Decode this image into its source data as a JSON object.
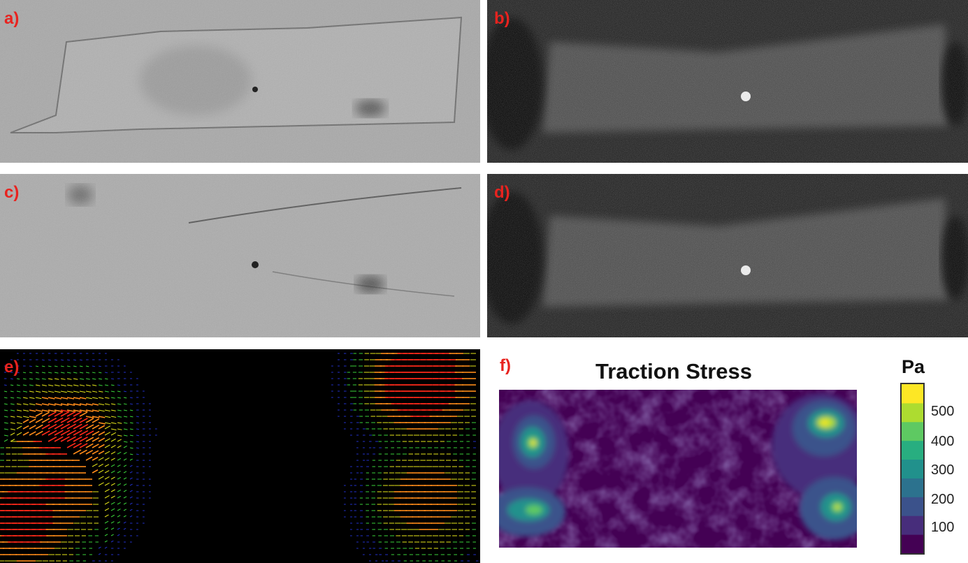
{
  "panels": [
    {
      "label": "a)",
      "kind": "brightfield"
    },
    {
      "label": "b)",
      "kind": "fluorescence"
    },
    {
      "label": "c)",
      "kind": "brightfield"
    },
    {
      "label": "d)",
      "kind": "fluorescence"
    },
    {
      "label": "e)",
      "kind": "displacement-vectors"
    },
    {
      "label": "f)",
      "kind": "traction-heatmap"
    }
  ],
  "heatmap": {
    "title": "Traction Stress",
    "colorbar_unit": "Pa",
    "colorbar_ticks": [
      "500",
      "400",
      "300",
      "200",
      "100"
    ],
    "colorscale": [
      "#440154",
      "#472d7b",
      "#3b528b",
      "#2c728e",
      "#21918c",
      "#28ae80",
      "#5ec962",
      "#addc30",
      "#fde725"
    ]
  },
  "colors": {
    "label": "#e8231f"
  }
}
